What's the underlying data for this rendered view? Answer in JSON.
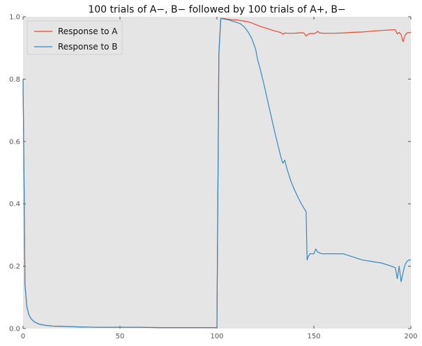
{
  "chart_data": {
    "type": "line",
    "title": "100 trials of A−, B− followed by 100 trials of A+, B−",
    "xlabel": "",
    "ylabel": "",
    "xlim": [
      0,
      200
    ],
    "ylim": [
      0,
      1.0
    ],
    "x_ticks": [
      0,
      50,
      100,
      150,
      200
    ],
    "y_ticks": [
      0.0,
      0.2,
      0.4,
      0.6,
      0.8,
      1.0
    ],
    "x_tick_labels": [
      "0",
      "50",
      "100",
      "150",
      "200"
    ],
    "y_tick_labels": [
      "0.0",
      "0.2",
      "0.4",
      "0.6",
      "0.8",
      "1.0"
    ],
    "grid": false,
    "background": "#e5e5e5",
    "legend_position": "top-left",
    "series": [
      {
        "name": "Response to A",
        "color": "#e24a33",
        "points": [
          [
            0,
            0.8
          ],
          [
            0.5,
            0.5
          ],
          [
            1,
            0.14
          ],
          [
            2,
            0.07
          ],
          [
            3,
            0.045
          ],
          [
            4,
            0.033
          ],
          [
            5,
            0.026
          ],
          [
            6,
            0.021
          ],
          [
            7,
            0.018
          ],
          [
            8,
            0.015
          ],
          [
            10,
            0.012
          ],
          [
            12,
            0.01
          ],
          [
            15,
            0.008
          ],
          [
            20,
            0.007
          ],
          [
            25,
            0.006
          ],
          [
            30,
            0.005
          ],
          [
            40,
            0.004
          ],
          [
            50,
            0.004
          ],
          [
            60,
            0.004
          ],
          [
            70,
            0.003
          ],
          [
            80,
            0.003
          ],
          [
            90,
            0.003
          ],
          [
            99,
            0.003
          ],
          [
            100,
            0.003
          ],
          [
            101,
            0.88
          ],
          [
            102,
            0.995
          ],
          [
            104,
            0.994
          ],
          [
            106,
            0.992
          ],
          [
            108,
            0.99
          ],
          [
            110,
            0.99
          ],
          [
            112,
            0.988
          ],
          [
            114,
            0.986
          ],
          [
            116,
            0.984
          ],
          [
            118,
            0.98
          ],
          [
            120,
            0.975
          ],
          [
            122,
            0.97
          ],
          [
            124,
            0.966
          ],
          [
            126,
            0.962
          ],
          [
            128,
            0.958
          ],
          [
            130,
            0.954
          ],
          [
            132,
            0.951
          ],
          [
            133,
            0.949
          ],
          [
            134,
            0.944
          ],
          [
            135,
            0.948
          ],
          [
            136,
            0.947
          ],
          [
            138,
            0.947
          ],
          [
            140,
            0.947
          ],
          [
            142,
            0.948
          ],
          [
            144,
            0.949
          ],
          [
            145,
            0.947
          ],
          [
            146,
            0.938
          ],
          [
            147,
            0.944
          ],
          [
            148,
            0.946
          ],
          [
            150,
            0.946
          ],
          [
            151,
            0.948
          ],
          [
            152,
            0.953
          ],
          [
            153,
            0.948
          ],
          [
            155,
            0.947
          ],
          [
            160,
            0.947
          ],
          [
            165,
            0.948
          ],
          [
            170,
            0.95
          ],
          [
            175,
            0.951
          ],
          [
            180,
            0.954
          ],
          [
            185,
            0.956
          ],
          [
            190,
            0.958
          ],
          [
            192,
            0.958
          ],
          [
            193,
            0.945
          ],
          [
            194,
            0.95
          ],
          [
            195,
            0.942
          ],
          [
            196,
            0.92
          ],
          [
            197,
            0.94
          ],
          [
            198,
            0.948
          ],
          [
            200,
            0.95
          ]
        ]
      },
      {
        "name": "Response to B",
        "color": "#348abd",
        "points": [
          [
            0,
            0.8
          ],
          [
            0.5,
            0.5
          ],
          [
            1,
            0.14
          ],
          [
            2,
            0.07
          ],
          [
            3,
            0.045
          ],
          [
            4,
            0.033
          ],
          [
            5,
            0.026
          ],
          [
            6,
            0.021
          ],
          [
            7,
            0.018
          ],
          [
            8,
            0.015
          ],
          [
            10,
            0.012
          ],
          [
            12,
            0.01
          ],
          [
            15,
            0.008
          ],
          [
            20,
            0.007
          ],
          [
            25,
            0.006
          ],
          [
            30,
            0.005
          ],
          [
            40,
            0.004
          ],
          [
            50,
            0.004
          ],
          [
            60,
            0.004
          ],
          [
            70,
            0.003
          ],
          [
            80,
            0.003
          ],
          [
            90,
            0.003
          ],
          [
            99,
            0.003
          ],
          [
            100,
            0.003
          ],
          [
            101,
            0.88
          ],
          [
            102,
            0.995
          ],
          [
            104,
            0.992
          ],
          [
            106,
            0.99
          ],
          [
            108,
            0.986
          ],
          [
            110,
            0.982
          ],
          [
            112,
            0.978
          ],
          [
            114,
            0.968
          ],
          [
            116,
            0.952
          ],
          [
            118,
            0.93
          ],
          [
            120,
            0.895
          ],
          [
            121,
            0.862
          ],
          [
            122,
            0.84
          ],
          [
            124,
            0.79
          ],
          [
            126,
            0.735
          ],
          [
            128,
            0.68
          ],
          [
            130,
            0.625
          ],
          [
            132,
            0.575
          ],
          [
            133,
            0.55
          ],
          [
            134,
            0.53
          ],
          [
            135,
            0.54
          ],
          [
            136,
            0.515
          ],
          [
            137,
            0.495
          ],
          [
            138,
            0.475
          ],
          [
            140,
            0.445
          ],
          [
            142,
            0.418
          ],
          [
            144,
            0.395
          ],
          [
            145,
            0.385
          ],
          [
            146,
            0.375
          ],
          [
            146.5,
            0.22
          ],
          [
            147,
            0.23
          ],
          [
            148,
            0.24
          ],
          [
            150,
            0.24
          ],
          [
            151,
            0.255
          ],
          [
            152,
            0.245
          ],
          [
            154,
            0.24
          ],
          [
            160,
            0.24
          ],
          [
            165,
            0.24
          ],
          [
            170,
            0.23
          ],
          [
            175,
            0.22
          ],
          [
            180,
            0.215
          ],
          [
            185,
            0.21
          ],
          [
            190,
            0.2
          ],
          [
            192,
            0.195
          ],
          [
            193,
            0.16
          ],
          [
            194,
            0.2
          ],
          [
            195,
            0.15
          ],
          [
            196,
            0.18
          ],
          [
            197,
            0.205
          ],
          [
            198,
            0.215
          ],
          [
            199,
            0.22
          ],
          [
            200,
            0.22
          ]
        ]
      }
    ]
  }
}
